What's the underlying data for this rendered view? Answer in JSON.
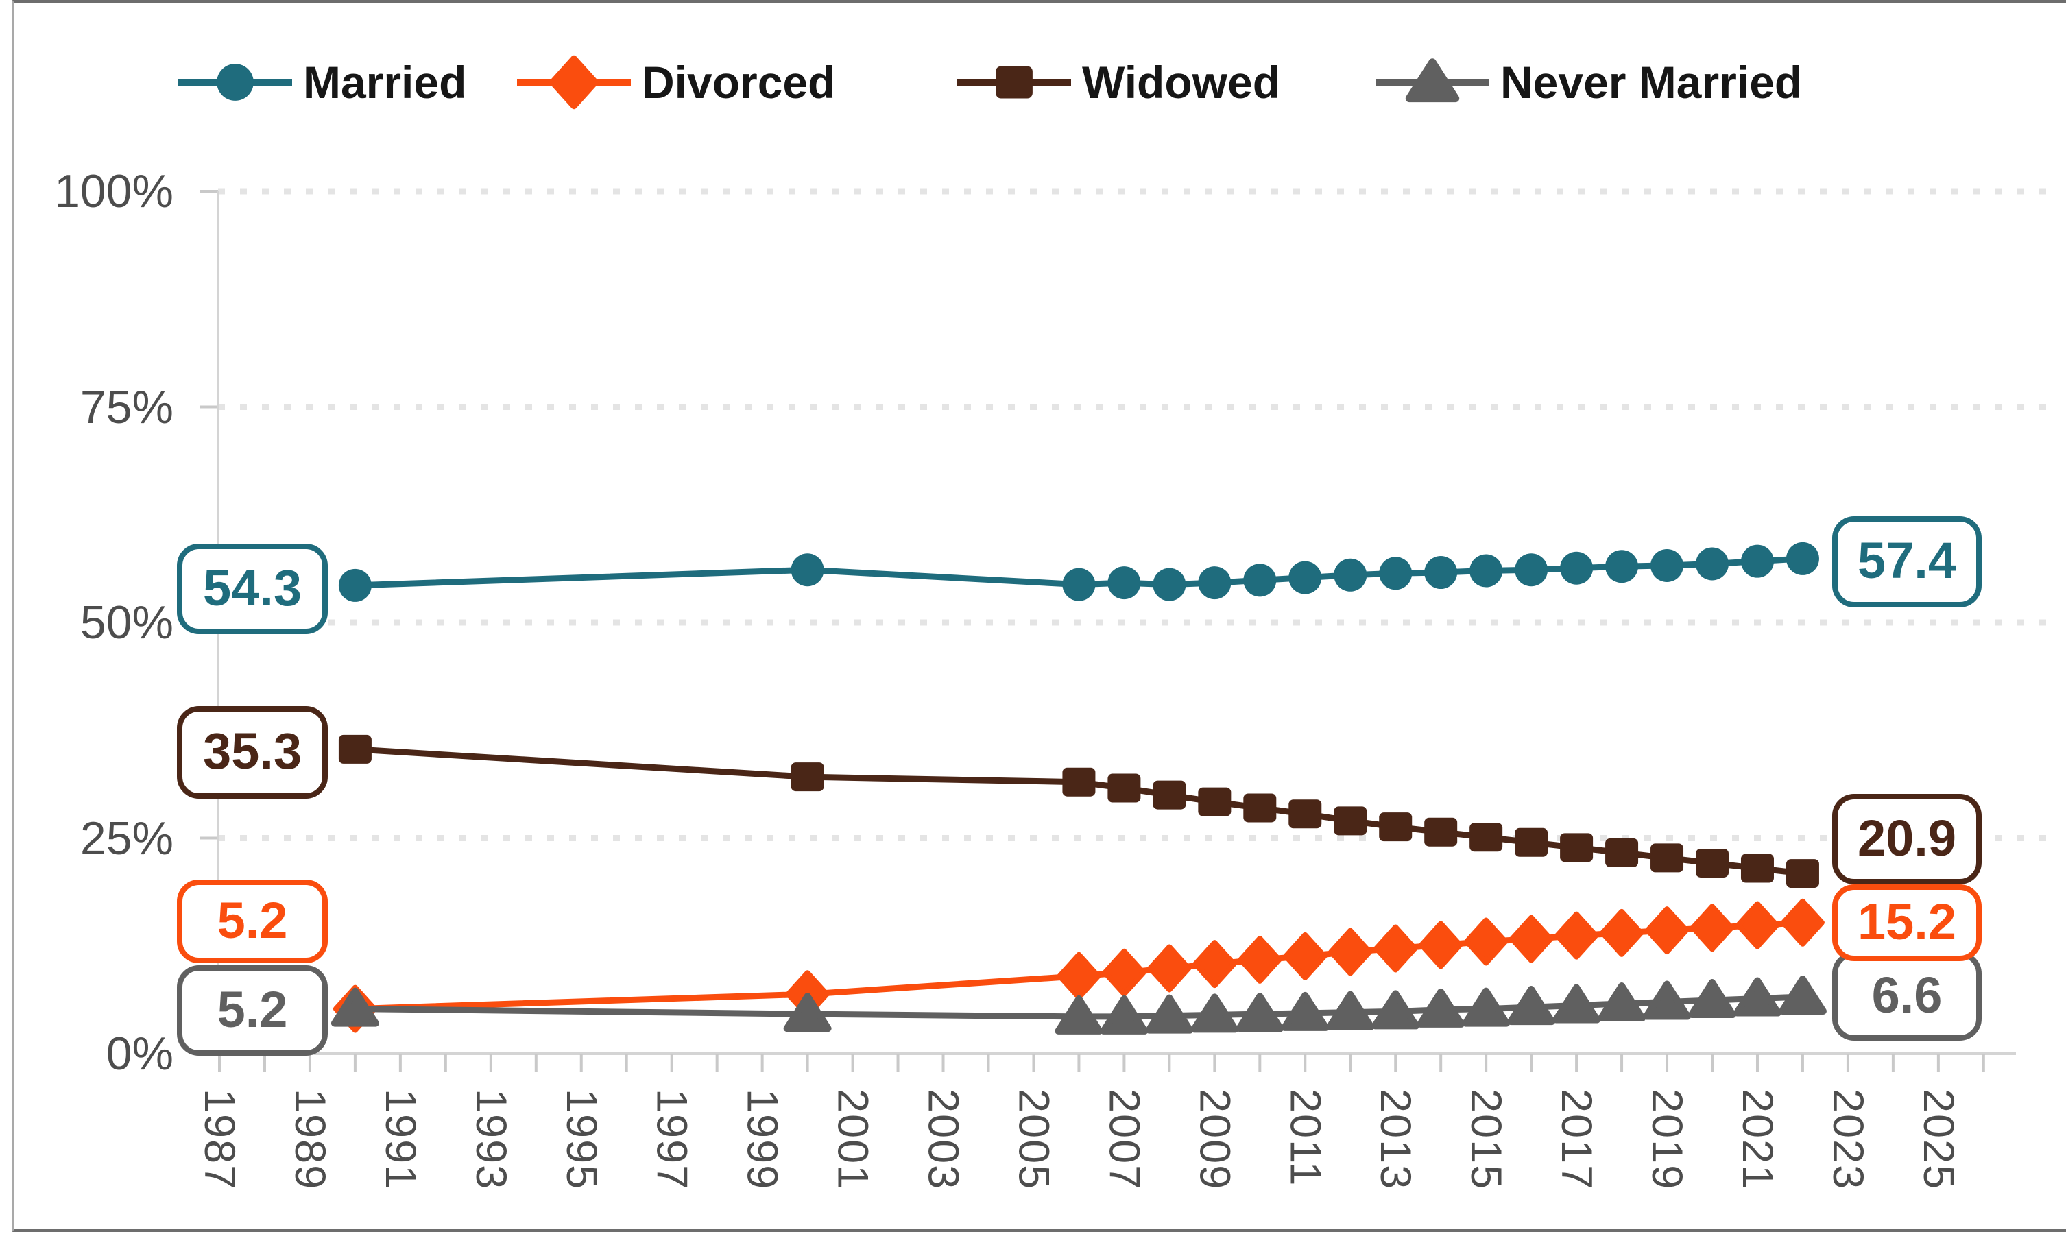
{
  "frame": {
    "background": "#ffffff",
    "border_color": "#6d6d6d"
  },
  "legend": {
    "items": [
      {
        "label": "Married",
        "marker": "circle",
        "color": "#1f6c7d"
      },
      {
        "label": "Divorced",
        "marker": "diamond",
        "color": "#fa4d0e"
      },
      {
        "label": "Widowed",
        "marker": "square",
        "color": "#4a2617"
      },
      {
        "label": "Never Married",
        "marker": "triangle",
        "color": "#606060"
      }
    ]
  },
  "y_axis": {
    "tick_labels": [
      "100%",
      "75%",
      "50%",
      "25%",
      "0%"
    ],
    "tick_values": [
      100,
      75,
      50,
      25,
      0
    ],
    "text_color": "#4d4d4d"
  },
  "x_axis": {
    "tick_labels": [
      "1987",
      "1989",
      "1991",
      "1993",
      "1995",
      "1997",
      "1999",
      "2001",
      "2003",
      "2005",
      "2007",
      "2009",
      "2011",
      "2013",
      "2015",
      "2017",
      "2019",
      "2021",
      "2023",
      "2025"
    ],
    "tick_years": [
      1987,
      1989,
      1991,
      1993,
      1995,
      1997,
      1999,
      2001,
      2003,
      2005,
      2007,
      2009,
      2011,
      2013,
      2015,
      2017,
      2019,
      2021,
      2023,
      2025
    ],
    "minor_tick_every_year": true,
    "text_color": "#4d4d4d"
  },
  "callouts": {
    "left": [
      {
        "value": "54.3",
        "series": "Married",
        "color": "#1f6c7d"
      },
      {
        "value": "35.3",
        "series": "Widowed",
        "color": "#4a2617"
      },
      {
        "value": "5.2",
        "series": "Divorced",
        "color": "#fa4d0e"
      },
      {
        "value": "5.2",
        "series": "Never Married",
        "color": "#606060"
      }
    ],
    "right": [
      {
        "value": "57.4",
        "series": "Married",
        "color": "#1f6c7d"
      },
      {
        "value": "20.9",
        "series": "Widowed",
        "color": "#4a2617"
      },
      {
        "value": "15.2",
        "series": "Divorced",
        "color": "#fa4d0e"
      },
      {
        "value": "6.6",
        "series": "Never Married",
        "color": "#606060"
      }
    ]
  },
  "chart_data": {
    "type": "line",
    "title": "",
    "xlabel": "",
    "ylabel": "",
    "x": [
      1990,
      2000,
      2006,
      2007,
      2008,
      2009,
      2010,
      2011,
      2012,
      2013,
      2014,
      2015,
      2016,
      2017,
      2018,
      2019,
      2020,
      2021,
      2022
    ],
    "series": [
      {
        "name": "Married",
        "marker": "circle",
        "color": "#1f6c7d",
        "values": [
          54.3,
          56.1,
          54.4,
          54.6,
          54.4,
          54.6,
          54.9,
          55.2,
          55.5,
          55.7,
          55.8,
          56.0,
          56.1,
          56.3,
          56.5,
          56.6,
          56.8,
          57.1,
          57.4
        ]
      },
      {
        "name": "Divorced",
        "marker": "diamond",
        "color": "#fa4d0e",
        "values": [
          5.2,
          6.9,
          9.0,
          9.4,
          9.9,
          10.4,
          10.9,
          11.3,
          11.8,
          12.2,
          12.6,
          13.0,
          13.3,
          13.7,
          14.0,
          14.3,
          14.6,
          14.9,
          15.2
        ]
      },
      {
        "name": "Widowed",
        "marker": "square",
        "color": "#4a2617",
        "values": [
          35.3,
          32.1,
          31.5,
          30.8,
          30.0,
          29.2,
          28.5,
          27.8,
          27.0,
          26.3,
          25.7,
          25.1,
          24.5,
          23.9,
          23.3,
          22.7,
          22.1,
          21.5,
          20.9
        ]
      },
      {
        "name": "Never Married",
        "marker": "triangle",
        "color": "#606060",
        "values": [
          5.2,
          4.6,
          4.3,
          4.3,
          4.4,
          4.5,
          4.6,
          4.7,
          4.8,
          4.9,
          5.1,
          5.2,
          5.4,
          5.6,
          5.8,
          6.0,
          6.2,
          6.4,
          6.6
        ]
      }
    ],
    "ylim": [
      0,
      100
    ],
    "xlim": [
      1987,
      2025
    ],
    "grid": "horizontal-dotted",
    "legend_position": "top",
    "gridline_color": "#e4e4e4",
    "axis_line_color": "#d4d4d4",
    "tick_color": "#c9c9c9"
  }
}
